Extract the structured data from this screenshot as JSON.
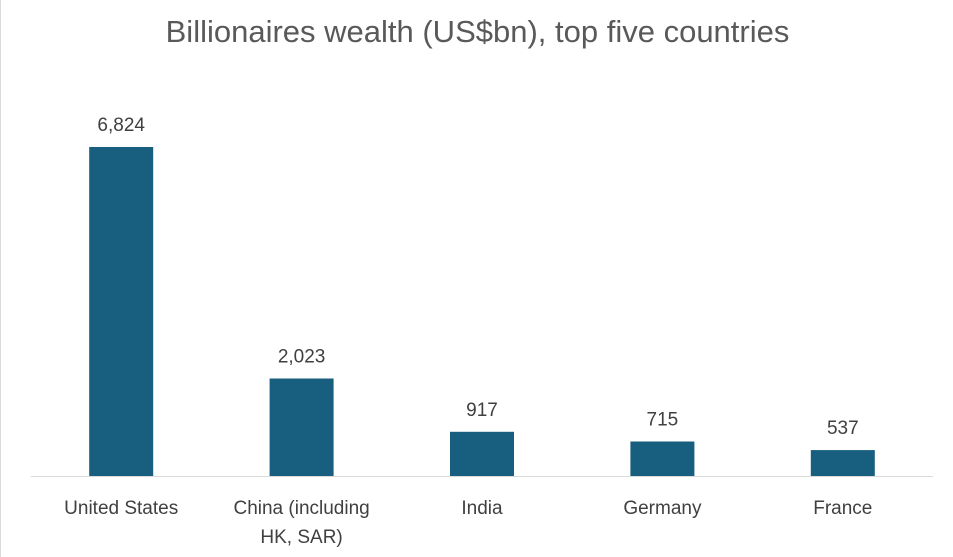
{
  "chart_data": {
    "type": "bar",
    "title": "Billionaires wealth (US$bn), top five countries",
    "categories": [
      "United States",
      "China (including HK, SAR)",
      "India",
      "Germany",
      "France"
    ],
    "category_lines": [
      [
        "United States"
      ],
      [
        "China (including",
        "HK, SAR)"
      ],
      [
        "India"
      ],
      [
        "Germany"
      ],
      [
        "France"
      ]
    ],
    "values": [
      6824,
      2023,
      917,
      715,
      537
    ],
    "value_labels": [
      "6,824",
      "2,023",
      "917",
      "715",
      "537"
    ],
    "xlabel": "",
    "ylabel": "",
    "ylim": [
      0,
      7000
    ],
    "grid": false,
    "legend": "none",
    "colors": {
      "bar": "#175e7f",
      "axis": "#d9d9d9",
      "text": "#404040",
      "title": "#595959"
    }
  }
}
